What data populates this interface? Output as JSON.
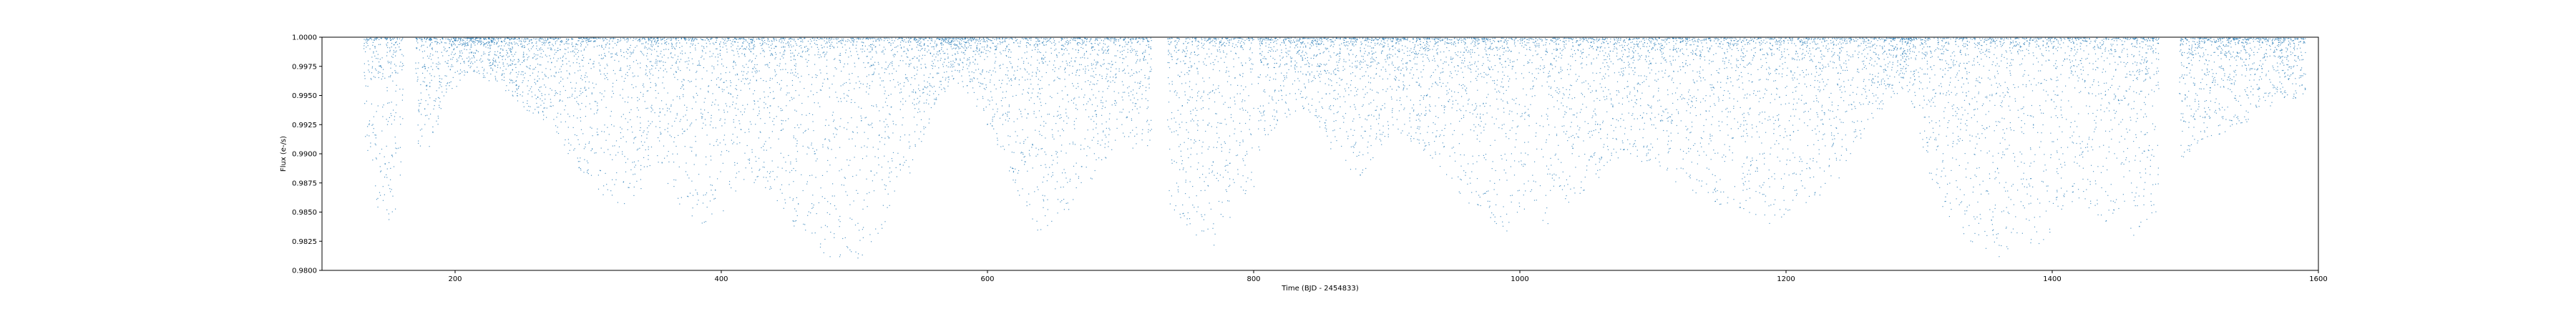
{
  "chart_data": {
    "type": "scatter",
    "title": "",
    "xlabel": "Time (BJD - 2454833)",
    "ylabel": "Flux (e-/s)",
    "xlim": [
      100,
      1600
    ],
    "ylim": [
      0.98,
      1.0
    ],
    "grid": false,
    "legend": "none",
    "marker_color": "#1f77b4",
    "x_ticks": [
      200,
      400,
      600,
      800,
      1000,
      1200,
      1400,
      1600
    ],
    "x_tick_labels": [
      "200",
      "400",
      "600",
      "800",
      "1000",
      "1200",
      "1400",
      "1600"
    ],
    "y_ticks": [
      0.98,
      0.9825,
      0.985,
      0.9875,
      0.99,
      0.9925,
      0.995,
      0.9975,
      1.0
    ],
    "y_tick_labels": [
      "0.9800",
      "0.9825",
      "0.9850",
      "0.9875",
      "0.9900",
      "0.9925",
      "0.9950",
      "0.9975",
      "1.0000"
    ],
    "series": [
      {
        "color": "#1f77b4",
        "segments": [
          {
            "x": [
              131,
              161
            ],
            "envelope": [
              [
                131,
                0.9925
              ],
              [
                137,
                0.9875
              ],
              [
                142,
                0.9848
              ],
              [
                150,
                0.9843
              ],
              [
                156,
                0.9855
              ],
              [
                161,
                0.989
              ]
            ]
          },
          {
            "x": [
              170,
              232
            ],
            "envelope": [
              [
                170,
                0.989
              ],
              [
                180,
                0.9905
              ],
              [
                195,
                0.995
              ],
              [
                210,
                0.997
              ],
              [
                222,
                0.9965
              ],
              [
                232,
                0.996
              ]
            ]
          },
          {
            "x": [
              232,
              350
            ],
            "envelope": [
              [
                232,
                0.996
              ],
              [
                250,
                0.994
              ],
              [
                265,
                0.993
              ],
              [
                285,
                0.99
              ],
              [
                305,
                0.987
              ],
              [
                325,
                0.9855
              ],
              [
                340,
                0.987
              ],
              [
                350,
                0.99
              ]
            ]
          },
          {
            "x": [
              350,
              420
            ],
            "envelope": [
              [
                350,
                0.99
              ],
              [
                365,
                0.986
              ],
              [
                385,
                0.984
              ],
              [
                400,
                0.985
              ],
              [
                420,
                0.988
              ]
            ]
          },
          {
            "x": [
              420,
              520
            ],
            "envelope": [
              [
                420,
                0.988
              ],
              [
                440,
                0.986
              ],
              [
                460,
                0.983
              ],
              [
                480,
                0.981
              ],
              [
                500,
                0.9805
              ],
              [
                520,
                0.983
              ]
            ]
          },
          {
            "x": [
              520,
              640
            ],
            "envelope": [
              [
                520,
                0.983
              ],
              [
                540,
                0.988
              ],
              [
                560,
                0.994
              ],
              [
                575,
                0.9965
              ],
              [
                590,
                0.9945
              ],
              [
                610,
                0.99
              ],
              [
                625,
                0.986
              ],
              [
                640,
                0.983
              ]
            ]
          },
          {
            "x": [
              640,
              723
            ],
            "envelope": [
              [
                640,
                0.983
              ],
              [
                660,
                0.985
              ],
              [
                680,
                0.988
              ],
              [
                700,
                0.991
              ],
              [
                715,
                0.99
              ],
              [
                723,
                0.989
              ]
            ]
          },
          {
            "x": [
              735,
              800
            ],
            "envelope": [
              [
                735,
                0.985
              ],
              [
                750,
                0.983
              ],
              [
                770,
                0.982
              ],
              [
                790,
                0.985
              ],
              [
                800,
                0.987
              ]
            ]
          },
          {
            "x": [
              803,
              905
            ],
            "envelope": [
              [
                803,
                0.99
              ],
              [
                820,
                0.993
              ],
              [
                840,
                0.994
              ],
              [
                860,
                0.99
              ],
              [
                880,
                0.988
              ],
              [
                905,
                0.992
              ]
            ]
          },
          {
            "x": [
              905,
              1060
            ],
            "envelope": [
              [
                905,
                0.992
              ],
              [
                930,
                0.99
              ],
              [
                960,
                0.986
              ],
              [
                990,
                0.983
              ],
              [
                1020,
                0.984
              ],
              [
                1040,
                0.986
              ],
              [
                1060,
                0.988
              ]
            ]
          },
          {
            "x": [
              1060,
              1165
            ],
            "envelope": [
              [
                1060,
                0.988
              ],
              [
                1080,
                0.99
              ],
              [
                1100,
                0.989
              ],
              [
                1120,
                0.987
              ],
              [
                1140,
                0.986
              ],
              [
                1165,
                0.985
              ]
            ]
          },
          {
            "x": [
              1165,
              1290
            ],
            "envelope": [
              [
                1165,
                0.985
              ],
              [
                1185,
                0.984
              ],
              [
                1210,
                0.985
              ],
              [
                1240,
                0.988
              ],
              [
                1265,
                0.993
              ],
              [
                1290,
                0.996
              ]
            ]
          },
          {
            "x": [
              1290,
              1420
            ],
            "envelope": [
              [
                1290,
                0.996
              ],
              [
                1310,
                0.987
              ],
              [
                1330,
                0.983
              ],
              [
                1360,
                0.981
              ],
              [
                1390,
                0.982
              ],
              [
                1420,
                0.986
              ]
            ]
          },
          {
            "x": [
              1420,
              1480
            ],
            "envelope": [
              [
                1420,
                0.986
              ],
              [
                1440,
                0.984
              ],
              [
                1460,
                0.983
              ],
              [
                1480,
                0.985
              ]
            ]
          },
          {
            "x": [
              1495,
              1590
            ],
            "envelope": [
              [
                1495,
                0.989
              ],
              [
                1510,
                0.991
              ],
              [
                1530,
                0.992
              ],
              [
                1550,
                0.993
              ],
              [
                1570,
                0.9945
              ],
              [
                1590,
                0.995
              ]
            ]
          }
        ]
      }
    ]
  }
}
